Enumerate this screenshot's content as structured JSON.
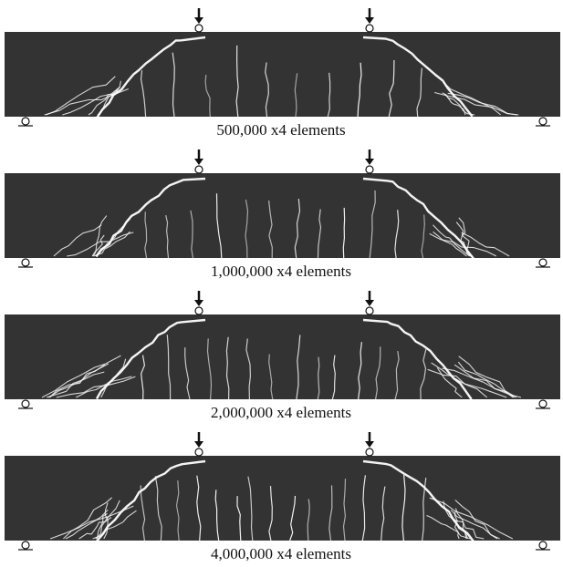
{
  "panels": [
    {
      "caption": "500,000 x4 elements"
    },
    {
      "caption": "1,000,000 x4 elements"
    },
    {
      "caption": "2,000,000 x4 elements"
    },
    {
      "caption": "4,000,000 x4 elements"
    }
  ]
}
